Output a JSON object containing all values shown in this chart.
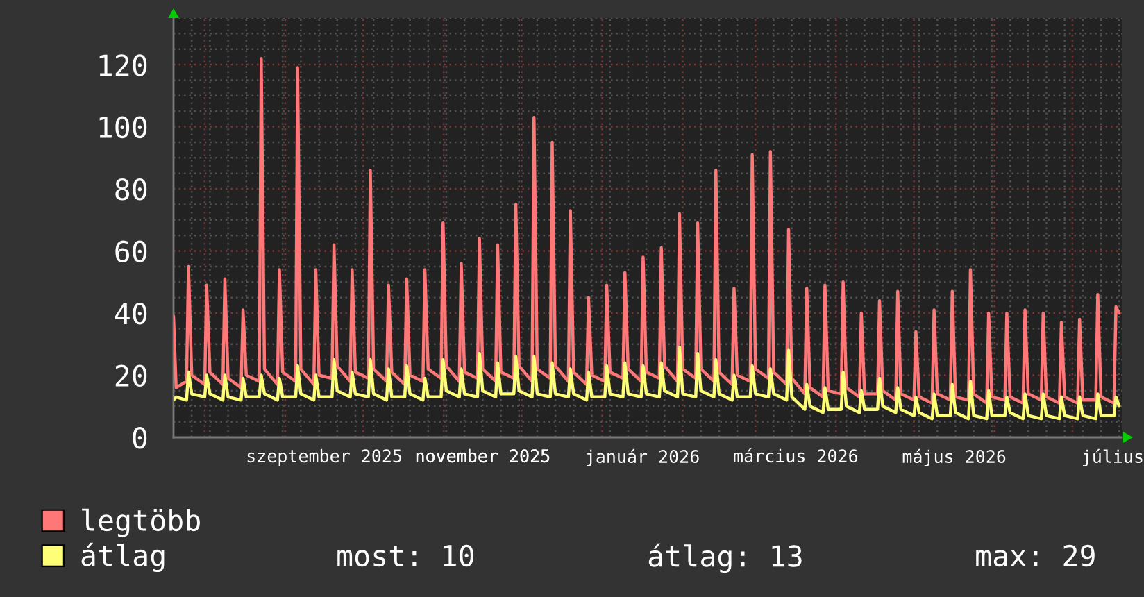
{
  "chart_data": {
    "type": "line",
    "x": [
      "2025-07-20",
      "2025-07-21",
      "2025-07-25",
      "2025-07-25T18:00",
      "2025-07-27",
      "2025-08-01",
      "2025-08-01T18:00",
      "2025-08-03",
      "2025-08-08",
      "2025-08-08T18:00",
      "2025-08-10",
      "2025-08-15",
      "2025-08-15T18:00",
      "2025-08-17",
      "2025-08-22",
      "2025-08-22T18:00",
      "2025-08-24",
      "2025-08-29",
      "2025-08-29T18:00",
      "2025-08-31",
      "2025-09-05",
      "2025-09-05T18:00",
      "2025-09-07",
      "2025-09-12",
      "2025-09-12T18:00",
      "2025-09-14",
      "2025-09-19",
      "2025-09-19T18:00",
      "2025-09-21",
      "2025-09-26",
      "2025-09-26T18:00",
      "2025-09-28",
      "2025-10-03",
      "2025-10-03T18:00",
      "2025-10-05",
      "2025-10-10",
      "2025-10-10T18:00",
      "2025-10-12",
      "2025-10-17",
      "2025-10-17T18:00",
      "2025-10-19",
      "2025-10-24",
      "2025-10-24T18:00",
      "2025-10-26",
      "2025-10-31",
      "2025-10-31T18:00",
      "2025-11-02",
      "2025-11-07",
      "2025-11-07T18:00",
      "2025-11-09",
      "2025-11-14",
      "2025-11-14T18:00",
      "2025-11-16",
      "2025-11-21",
      "2025-11-21T18:00",
      "2025-11-23",
      "2025-11-28",
      "2025-11-28T18:00",
      "2025-11-30",
      "2025-12-05",
      "2025-12-05T18:00",
      "2025-12-07",
      "2025-12-12",
      "2025-12-12T18:00",
      "2025-12-14",
      "2025-12-19",
      "2025-12-19T18:00",
      "2025-12-21",
      "2025-12-26",
      "2025-12-26T18:00",
      "2025-12-28",
      "2026-01-02",
      "2026-01-02T18:00",
      "2026-01-04",
      "2026-01-09",
      "2026-01-09T18:00",
      "2026-01-11",
      "2026-01-16",
      "2026-01-16T18:00",
      "2026-01-18",
      "2026-01-23",
      "2026-01-23T18:00",
      "2026-01-25",
      "2026-01-30",
      "2026-01-30T18:00",
      "2026-02-01",
      "2026-02-06",
      "2026-02-06T18:00",
      "2026-02-08",
      "2026-02-13",
      "2026-02-13T18:00",
      "2026-02-15",
      "2026-02-20",
      "2026-02-20T18:00",
      "2026-02-22",
      "2026-02-27",
      "2026-02-27T18:00",
      "2026-03-01",
      "2026-03-06",
      "2026-03-06T18:00",
      "2026-03-08",
      "2026-03-13",
      "2026-03-13T18:00",
      "2026-03-15",
      "2026-03-20",
      "2026-03-20T18:00",
      "2026-03-22",
      "2026-03-27",
      "2026-03-27T18:00",
      "2026-03-29",
      "2026-04-03",
      "2026-04-03T18:00",
      "2026-04-05",
      "2026-04-10",
      "2026-04-10T18:00",
      "2026-04-12",
      "2026-04-17",
      "2026-04-17T18:00",
      "2026-04-19",
      "2026-04-24",
      "2026-04-24T18:00",
      "2026-04-26",
      "2026-05-01",
      "2026-05-01T18:00",
      "2026-05-03",
      "2026-05-08",
      "2026-05-08T18:00",
      "2026-05-10",
      "2026-05-15",
      "2026-05-15T18:00",
      "2026-05-17",
      "2026-05-22",
      "2026-05-22T18:00",
      "2026-05-24",
      "2026-05-29",
      "2026-05-29T18:00",
      "2026-05-31",
      "2026-06-05",
      "2026-06-05T18:00",
      "2026-06-07",
      "2026-06-12",
      "2026-06-12T18:00",
      "2026-06-14",
      "2026-06-19",
      "2026-06-19T18:00",
      "2026-06-21",
      "2026-06-26",
      "2026-06-26T18:00",
      "2026-06-28",
      "2026-07-03",
      "2026-07-03T18:00",
      "2026-07-05",
      "2026-07-10",
      "2026-07-10T18:00",
      "2026-07-12",
      "2026-07-17",
      "2026-07-17T18:00",
      "2026-07-19"
    ],
    "series": [
      {
        "name": "legtöbb",
        "color": "#ff7777",
        "values": [
          39,
          16,
          18,
          55,
          20,
          17,
          49,
          21,
          17,
          51,
          19,
          16,
          41,
          20,
          18,
          122,
          22,
          17,
          54,
          21,
          18,
          119,
          22,
          17,
          54,
          20,
          19,
          62,
          23,
          18,
          54,
          21,
          19,
          86,
          22,
          18,
          49,
          21,
          17,
          51,
          20,
          18,
          54,
          22,
          19,
          69,
          23,
          18,
          56,
          21,
          19,
          64,
          22,
          18,
          62,
          21,
          19,
          75,
          23,
          18,
          103,
          22,
          19,
          95,
          23,
          18,
          73,
          21,
          17,
          45,
          20,
          18,
          49,
          21,
          19,
          53,
          22,
          18,
          58,
          21,
          19,
          61,
          23,
          18,
          72,
          22,
          19,
          69,
          22,
          18,
          86,
          21,
          17,
          48,
          20,
          18,
          91,
          22,
          19,
          92,
          21,
          17,
          67,
          19,
          14,
          48,
          16,
          13,
          49,
          15,
          14,
          50,
          16,
          13,
          40,
          14,
          14,
          44,
          15,
          12,
          47,
          14,
          12,
          34,
          13,
          11,
          41,
          14,
          12,
          47,
          13,
          12,
          54,
          14,
          11,
          40,
          13,
          12,
          40,
          13,
          11,
          41,
          14,
          12,
          40,
          13,
          11,
          37,
          13,
          11,
          38,
          12,
          12,
          46,
          13,
          11,
          42,
          40
        ]
      },
      {
        "name": "átlag",
        "color": "#ffff77",
        "values": [
          12,
          13,
          12,
          21,
          14,
          13,
          20,
          14,
          12,
          20,
          13,
          12,
          19,
          13,
          13,
          20,
          14,
          12,
          19,
          13,
          13,
          23,
          14,
          12,
          20,
          13,
          13,
          25,
          15,
          13,
          21,
          14,
          13,
          25,
          14,
          12,
          22,
          13,
          13,
          23,
          14,
          12,
          19,
          13,
          13,
          25,
          15,
          13,
          22,
          14,
          13,
          27,
          15,
          13,
          24,
          14,
          14,
          26,
          15,
          13,
          26,
          14,
          13,
          24,
          14,
          13,
          22,
          14,
          12,
          21,
          13,
          13,
          23,
          14,
          13,
          24,
          14,
          13,
          23,
          14,
          13,
          24,
          15,
          13,
          29,
          14,
          13,
          27,
          15,
          13,
          25,
          14,
          12,
          20,
          13,
          13,
          23,
          14,
          13,
          22,
          14,
          12,
          28,
          13,
          9,
          17,
          10,
          8,
          16,
          9,
          9,
          21,
          10,
          8,
          15,
          9,
          9,
          19,
          10,
          8,
          16,
          9,
          7,
          13,
          8,
          6,
          14,
          7,
          7,
          17,
          8,
          6,
          18,
          7,
          6,
          15,
          7,
          7,
          13,
          8,
          6,
          14,
          7,
          6,
          14,
          7,
          6,
          13,
          7,
          6,
          13,
          7,
          6,
          14,
          7,
          7,
          13,
          10
        ]
      }
    ],
    "xlim": [
      "2025-07-20",
      "2026-07-20"
    ],
    "xticks": [
      {
        "value": "2025-07-27",
        "label": null
      },
      {
        "value": "2025-08-01",
        "label": null
      },
      {
        "value": "2025-08-03",
        "label": null
      },
      {
        "value": "2025-08-10",
        "label": null
      },
      {
        "value": "2025-08-17",
        "label": null
      },
      {
        "value": "2025-08-24",
        "label": null
      },
      {
        "value": "2025-08-31",
        "label": null
      },
      {
        "value": "2025-09-01",
        "label": null
      },
      {
        "value": "2025-09-07",
        "label": null
      },
      {
        "value": "2025-09-14",
        "label": null
      },
      {
        "value": "2025-09-16",
        "label": "szeptember 2025"
      },
      {
        "value": "2025-09-21",
        "label": null
      },
      {
        "value": "2025-09-28",
        "label": null
      },
      {
        "value": "2025-10-01",
        "label": null
      },
      {
        "value": "2025-10-05",
        "label": null
      },
      {
        "value": "2025-10-12",
        "label": null
      },
      {
        "value": "2025-10-19",
        "label": null
      },
      {
        "value": "2025-10-26",
        "label": null
      },
      {
        "value": "2025-11-01",
        "label": null
      },
      {
        "value": "2025-11-02",
        "label": null
      },
      {
        "value": "2025-11-09",
        "label": null
      },
      {
        "value": "2025-11-16",
        "label": null
      },
      {
        "value": "2025-11-16",
        "label": "november 2025"
      },
      {
        "value": "2025-11-23",
        "label": null
      },
      {
        "value": "2025-11-30",
        "label": null
      },
      {
        "value": "2025-12-01",
        "label": null
      },
      {
        "value": "2025-12-07",
        "label": null
      },
      {
        "value": "2025-12-14",
        "label": null
      },
      {
        "value": "2025-12-21",
        "label": null
      },
      {
        "value": "2025-12-28",
        "label": null
      },
      {
        "value": "2026-01-01",
        "label": null
      },
      {
        "value": "2026-01-04",
        "label": null
      },
      {
        "value": "2026-01-11",
        "label": null
      },
      {
        "value": "2026-01-16T12:00",
        "label": "január 2026"
      },
      {
        "value": "2026-01-18",
        "label": null
      },
      {
        "value": "2026-01-25",
        "label": null
      },
      {
        "value": "2026-02-01",
        "label": null
      },
      {
        "value": "2026-02-08",
        "label": null
      },
      {
        "value": "2026-02-15",
        "label": null
      },
      {
        "value": "2026-02-22",
        "label": null
      },
      {
        "value": "2026-03-01",
        "label": null
      },
      {
        "value": "2026-03-08",
        "label": null
      },
      {
        "value": "2026-03-15",
        "label": null
      },
      {
        "value": "2026-03-16T12:00",
        "label": "március 2026"
      },
      {
        "value": "2026-03-22",
        "label": null
      },
      {
        "value": "2026-03-29",
        "label": null
      },
      {
        "value": "2026-04-01",
        "label": null
      },
      {
        "value": "2026-04-05",
        "label": null
      },
      {
        "value": "2026-04-12",
        "label": null
      },
      {
        "value": "2026-04-19",
        "label": null
      },
      {
        "value": "2026-04-26",
        "label": null
      },
      {
        "value": "2026-05-01",
        "label": null
      },
      {
        "value": "2026-05-03",
        "label": null
      },
      {
        "value": "2026-05-10",
        "label": null
      },
      {
        "value": "2026-05-16T12:00",
        "label": "május 2026"
      },
      {
        "value": "2026-05-17",
        "label": null
      },
      {
        "value": "2026-05-24",
        "label": null
      },
      {
        "value": "2026-05-31",
        "label": null
      },
      {
        "value": "2026-06-01",
        "label": null
      },
      {
        "value": "2026-06-07",
        "label": null
      },
      {
        "value": "2026-06-14",
        "label": null
      },
      {
        "value": "2026-06-21",
        "label": null
      },
      {
        "value": "2026-06-28",
        "label": null
      },
      {
        "value": "2026-07-01",
        "label": null
      },
      {
        "value": "2026-07-05",
        "label": null
      },
      {
        "value": "2026-07-12",
        "label": null
      },
      {
        "value": "2026-07-16T12:00",
        "label": "július"
      },
      {
        "value": "2026-07-19",
        "label": null
      }
    ],
    "ylim": [
      0,
      135
    ],
    "yticks": [
      0,
      {
        "value": 5,
        "label": null
      },
      {
        "value": 10,
        "label": null
      },
      {
        "value": 15,
        "label": null
      },
      20,
      {
        "value": 25,
        "label": null
      },
      {
        "value": 30,
        "label": null
      },
      {
        "value": 35,
        "label": null
      },
      40,
      {
        "value": 45,
        "label": null
      },
      {
        "value": 50,
        "label": null
      },
      {
        "value": 55,
        "label": null
      },
      60,
      {
        "value": 65,
        "label": null
      },
      {
        "value": 70,
        "label": null
      },
      {
        "value": 75,
        "label": null
      },
      80,
      {
        "value": 85,
        "label": null
      },
      {
        "value": 90,
        "label": null
      },
      {
        "value": 95,
        "label": null
      },
      100,
      {
        "value": 105,
        "label": null
      },
      {
        "value": 110,
        "label": null
      },
      {
        "value": 115,
        "label": null
      },
      120,
      {
        "value": 125,
        "label": null
      },
      {
        "value": 130,
        "label": null
      },
      {
        "value": 135,
        "label": null
      }
    ],
    "grid": true,
    "legend": "bottom left",
    "annotations": [
      "most: 10",
      "átlag: 13",
      "max: 29"
    ]
  }
}
